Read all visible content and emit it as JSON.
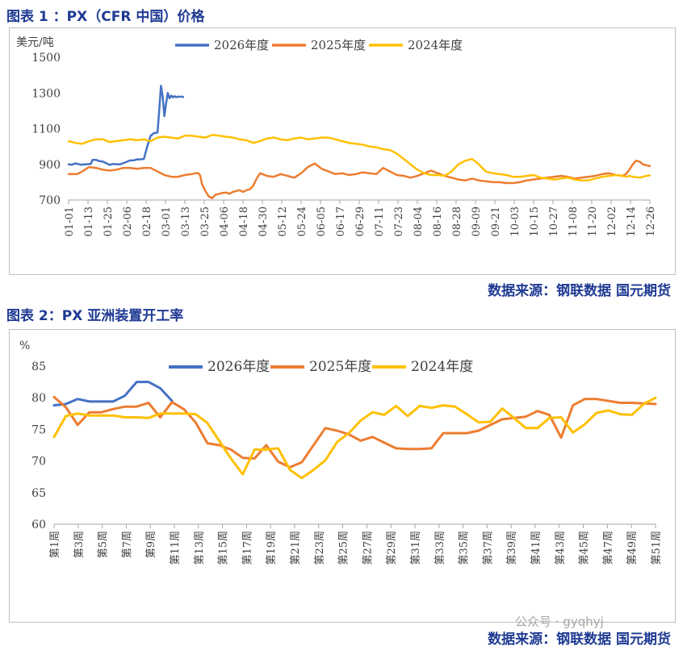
{
  "figure1": {
    "title": "图表 1 ：PX（CFR 中国）价格",
    "source": "数据来源：钢联数据    国元期货",
    "chart_data": {
      "type": "line",
      "unit_label": "美元/吨",
      "ylim": [
        700,
        1500
      ],
      "yticks": [
        700,
        900,
        1100,
        1300,
        1500
      ],
      "xticks": [
        "01-01",
        "01-13",
        "01-25",
        "02-06",
        "02-18",
        "03-01",
        "03-13",
        "03-25",
        "04-06",
        "04-18",
        "04-30",
        "05-12",
        "05-24",
        "06-05",
        "06-17",
        "06-29",
        "07-11",
        "07-23",
        "08-04",
        "08-16",
        "08-28",
        "09-09",
        "09-21",
        "10-03",
        "10-15",
        "10-27",
        "11-08",
        "11-20",
        "12-02",
        "12-14",
        "12-26"
      ],
      "grid": false,
      "legend": "top",
      "series": [
        {
          "name": "2026年度",
          "color": "#4472c4",
          "x": [
            0,
            2,
            4,
            7,
            10,
            13,
            14,
            16,
            18,
            20,
            24,
            26,
            28,
            30,
            33,
            36,
            38,
            40,
            42,
            44,
            46,
            48,
            50,
            52,
            53,
            54,
            55,
            56,
            57,
            58,
            59,
            60,
            61,
            62,
            63,
            64,
            65,
            66,
            67
          ],
          "values": [
            900,
            898,
            905,
            898,
            900,
            902,
            925,
            925,
            918,
            915,
            897,
            902,
            900,
            900,
            910,
            922,
            922,
            928,
            928,
            930,
            1000,
            1060,
            1075,
            1078,
            1200,
            1340,
            1280,
            1170,
            1240,
            1300,
            1270,
            1285,
            1275,
            1282,
            1276,
            1280,
            1278,
            1280,
            1277
          ]
        },
        {
          "name": "2025年度",
          "color": "#ed7d31",
          "x": [
            0,
            5,
            8,
            12,
            16,
            20,
            24,
            28,
            32,
            36,
            40,
            44,
            48,
            52,
            56,
            60,
            64,
            68,
            72,
            74,
            76,
            77,
            78,
            80,
            82,
            84,
            86,
            88,
            90,
            92,
            94,
            96,
            98,
            100,
            102,
            104,
            106,
            108,
            110,
            112,
            116,
            120,
            124,
            128,
            132,
            136,
            140,
            144,
            148,
            152,
            156,
            160,
            164,
            168,
            172,
            176,
            180,
            184,
            188,
            192,
            196,
            200,
            204,
            208,
            212,
            216,
            220,
            224,
            228,
            232,
            236,
            240,
            244,
            248,
            252,
            256,
            260,
            264,
            268,
            272,
            276,
            280,
            284,
            288,
            292,
            296,
            300,
            304,
            308,
            312,
            316,
            320,
            324,
            326,
            328,
            330,
            332,
            334,
            336,
            338,
            340
          ],
          "values": [
            845,
            845,
            860,
            885,
            880,
            870,
            865,
            870,
            880,
            880,
            875,
            880,
            880,
            860,
            840,
            830,
            830,
            840,
            845,
            850,
            850,
            835,
            790,
            750,
            720,
            710,
            730,
            735,
            740,
            742,
            735,
            745,
            750,
            755,
            745,
            755,
            760,
            780,
            820,
            850,
            835,
            830,
            845,
            835,
            825,
            850,
            885,
            905,
            875,
            860,
            845,
            850,
            840,
            845,
            855,
            850,
            845,
            880,
            860,
            840,
            835,
            825,
            835,
            850,
            865,
            850,
            835,
            825,
            815,
            810,
            820,
            810,
            805,
            800,
            800,
            795,
            795,
            800,
            810,
            815,
            820,
            825,
            830,
            835,
            830,
            820,
            825,
            830,
            835,
            845,
            850,
            840,
            835,
            845,
            870,
            900,
            920,
            915,
            900,
            895,
            890
          ]
        },
        {
          "name": "2024年度",
          "color": "#ffc000",
          "x": [
            0,
            4,
            8,
            12,
            16,
            20,
            24,
            28,
            32,
            36,
            40,
            44,
            48,
            52,
            56,
            60,
            64,
            68,
            72,
            76,
            80,
            84,
            88,
            92,
            96,
            100,
            104,
            108,
            112,
            116,
            120,
            124,
            128,
            132,
            136,
            140,
            144,
            148,
            152,
            156,
            160,
            164,
            168,
            172,
            176,
            180,
            184,
            188,
            192,
            196,
            200,
            204,
            208,
            212,
            216,
            220,
            224,
            228,
            232,
            236,
            240,
            244,
            248,
            252,
            256,
            260,
            264,
            268,
            272,
            276,
            280,
            284,
            288,
            292,
            296,
            300,
            304,
            308,
            312,
            316,
            320,
            324,
            326,
            328,
            330,
            332,
            334,
            336,
            338,
            340
          ],
          "values": [
            1030,
            1020,
            1015,
            1030,
            1040,
            1040,
            1025,
            1030,
            1035,
            1040,
            1035,
            1040,
            1030,
            1050,
            1055,
            1050,
            1045,
            1060,
            1060,
            1055,
            1050,
            1065,
            1060,
            1055,
            1050,
            1040,
            1035,
            1020,
            1030,
            1045,
            1050,
            1040,
            1035,
            1045,
            1050,
            1040,
            1045,
            1050,
            1050,
            1040,
            1030,
            1020,
            1015,
            1010,
            1000,
            995,
            985,
            980,
            960,
            930,
            900,
            870,
            850,
            840,
            840,
            835,
            860,
            900,
            920,
            930,
            900,
            860,
            850,
            845,
            840,
            830,
            830,
            835,
            840,
            825,
            820,
            815,
            820,
            825,
            815,
            810,
            810,
            820,
            830,
            835,
            840,
            835,
            830,
            835,
            830,
            828,
            825,
            830,
            835,
            838
          ]
        }
      ]
    }
  },
  "figure2": {
    "title": "图表 2：PX 亚洲装置开工率",
    "source": "数据来源：钢联数据    国元期货",
    "watermark": "公众号 · gyqhyj",
    "chart_data": {
      "type": "line",
      "unit_label": "%",
      "ylim": [
        60,
        85
      ],
      "yticks": [
        60,
        65,
        70,
        75,
        80,
        85
      ],
      "xticks": [
        "第1周",
        "第3周",
        "第5周",
        "第7周",
        "第9周",
        "第11周",
        "第13周",
        "第15周",
        "第17周",
        "第19周",
        "第21周",
        "第23周",
        "第25周",
        "第27周",
        "第29周",
        "第31周",
        "第33周",
        "第35周",
        "第37周",
        "第39周",
        "第41周",
        "第43周",
        "第45周",
        "第47周",
        "第49周",
        "第51周"
      ],
      "grid": false,
      "legend": "top",
      "series": [
        {
          "name": "2026年度",
          "color": "#4472c4",
          "x": [
            1,
            2,
            3,
            4,
            5,
            6,
            7,
            8,
            9,
            10,
            11
          ],
          "values": [
            78.8,
            79.0,
            79.8,
            79.4,
            79.4,
            79.4,
            80.3,
            82.5,
            82.5,
            81.5,
            79.5
          ]
        },
        {
          "name": "2025年度",
          "color": "#ed7d31",
          "x": [
            1,
            2,
            3,
            4,
            5,
            6,
            7,
            8,
            9,
            10,
            11,
            12,
            13,
            14,
            15,
            16,
            17,
            18,
            19,
            20,
            21,
            22,
            23,
            24,
            25,
            26,
            27,
            28,
            29,
            30,
            31,
            32,
            33,
            34,
            35,
            36,
            37,
            38,
            39,
            40,
            41,
            42,
            43,
            44,
            45,
            46,
            47,
            48,
            49,
            50,
            51,
            52
          ],
          "values": [
            80.1,
            78.5,
            75.7,
            77.7,
            77.7,
            78.2,
            78.6,
            78.6,
            79.2,
            76.9,
            79.3,
            78.2,
            76.1,
            72.8,
            72.5,
            71.8,
            70.5,
            70.4,
            72.5,
            69.9,
            69.0,
            69.8,
            72.5,
            75.2,
            74.8,
            74.2,
            73.2,
            73.8,
            72.9,
            72.0,
            71.9,
            71.9,
            72.0,
            74.4,
            74.4,
            74.4,
            74.8,
            75.7,
            76.6,
            76.8,
            77.0,
            77.9,
            77.3,
            73.7,
            78.8,
            79.8,
            79.8,
            79.5,
            79.2,
            79.2,
            79.1,
            79.0
          ]
        },
        {
          "name": "2024年度",
          "color": "#ffc000",
          "x": [
            1,
            2,
            3,
            4,
            5,
            6,
            7,
            8,
            9,
            10,
            11,
            12,
            13,
            14,
            15,
            16,
            17,
            18,
            19,
            20,
            21,
            22,
            23,
            24,
            25,
            26,
            27,
            28,
            29,
            30,
            31,
            32,
            33,
            34,
            35,
            36,
            37,
            38,
            39,
            40,
            41,
            42,
            43,
            44,
            45,
            46,
            47,
            48,
            49,
            50,
            51,
            52
          ],
          "values": [
            73.8,
            77.1,
            77.5,
            77.2,
            77.2,
            77.2,
            76.9,
            76.9,
            76.8,
            77.5,
            77.5,
            77.5,
            77.4,
            76.0,
            73.2,
            70.4,
            67.9,
            71.8,
            71.8,
            72.0,
            68.6,
            67.3,
            68.6,
            70.1,
            73.0,
            74.4,
            76.4,
            77.7,
            77.3,
            78.7,
            77.1,
            78.7,
            78.4,
            78.8,
            78.6,
            77.4,
            76.1,
            76.2,
            78.3,
            76.8,
            75.2,
            75.2,
            76.8,
            76.9,
            74.5,
            75.8,
            77.6,
            78.0,
            77.4,
            77.3,
            79.0,
            80.0
          ]
        }
      ]
    }
  }
}
